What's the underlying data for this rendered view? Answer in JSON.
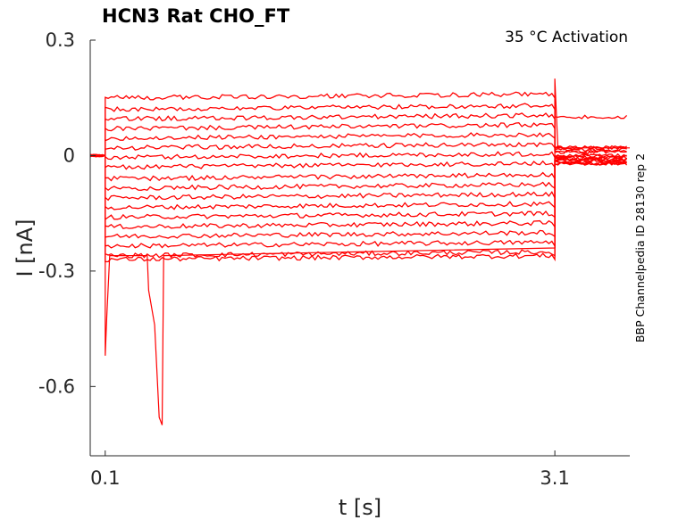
{
  "chart_data": {
    "type": "line",
    "title": "HCN3  Rat  CHO_FT",
    "annotation": "35 °C  Activation",
    "side_note": "BBP Channelpedia ID 28130 rep 2",
    "xlabel": "t [s]",
    "ylabel": "I [nA]",
    "xlim": [
      0.0,
      3.6
    ],
    "ylim": [
      -0.78,
      0.3
    ],
    "x_ticks": [
      {
        "value": 0.1,
        "label": "0.1"
      },
      {
        "value": 3.1,
        "label": "3.1"
      }
    ],
    "y_ticks": [
      {
        "value": 0.3,
        "label": "0.3"
      },
      {
        "value": 0.0,
        "label": "0"
      },
      {
        "value": -0.3,
        "label": "-0.3"
      },
      {
        "value": -0.6,
        "label": "-0.6"
      }
    ],
    "grid": false,
    "line_color": "#ff0000",
    "protocol": {
      "t_start": 0.1,
      "t_end": 3.1
    },
    "sweeps": [
      {
        "pre": 0.0,
        "step": 0.15,
        "tail": 0.1
      },
      {
        "pre": 0.0,
        "step": 0.12,
        "tail": 0.02
      },
      {
        "pre": 0.0,
        "step": 0.095,
        "tail": 0.02
      },
      {
        "pre": 0.0,
        "step": 0.07,
        "tail": 0.015
      },
      {
        "pre": 0.0,
        "step": 0.045,
        "tail": 0.01
      },
      {
        "pre": 0.0,
        "step": 0.02,
        "tail": 0.01
      },
      {
        "pre": 0.0,
        "step": -0.005,
        "tail": 0.0
      },
      {
        "pre": 0.0,
        "step": -0.03,
        "tail": 0.0
      },
      {
        "pre": 0.0,
        "step": -0.06,
        "tail": -0.005
      },
      {
        "pre": 0.0,
        "step": -0.085,
        "tail": -0.005
      },
      {
        "pre": 0.0,
        "step": -0.11,
        "tail": -0.01
      },
      {
        "pre": 0.0,
        "step": -0.135,
        "tail": -0.01
      },
      {
        "pre": 0.0,
        "step": -0.16,
        "tail": -0.01
      },
      {
        "pre": 0.0,
        "step": -0.185,
        "tail": -0.015
      },
      {
        "pre": 0.0,
        "step": -0.21,
        "tail": -0.015
      },
      {
        "pre": 0.0,
        "step": -0.235,
        "tail": -0.02
      },
      {
        "pre": 0.0,
        "step": -0.26,
        "tail": -0.02
      },
      {
        "pre": 0.0,
        "step": -0.27,
        "tail": -0.02
      }
    ],
    "transient_sweep": {
      "points": [
        [
          0.0,
          0.0
        ],
        [
          0.1,
          0.0
        ],
        [
          0.1,
          -0.52
        ],
        [
          0.11,
          -0.42
        ],
        [
          0.13,
          -0.26
        ],
        [
          0.38,
          -0.26
        ],
        [
          0.39,
          -0.35
        ],
        [
          0.43,
          -0.44
        ],
        [
          0.46,
          -0.68
        ],
        [
          0.48,
          -0.7
        ],
        [
          0.49,
          -0.26
        ],
        [
          3.1,
          -0.24
        ],
        [
          3.1,
          0.2
        ],
        [
          3.12,
          0.02
        ],
        [
          3.6,
          0.02
        ]
      ]
    }
  }
}
